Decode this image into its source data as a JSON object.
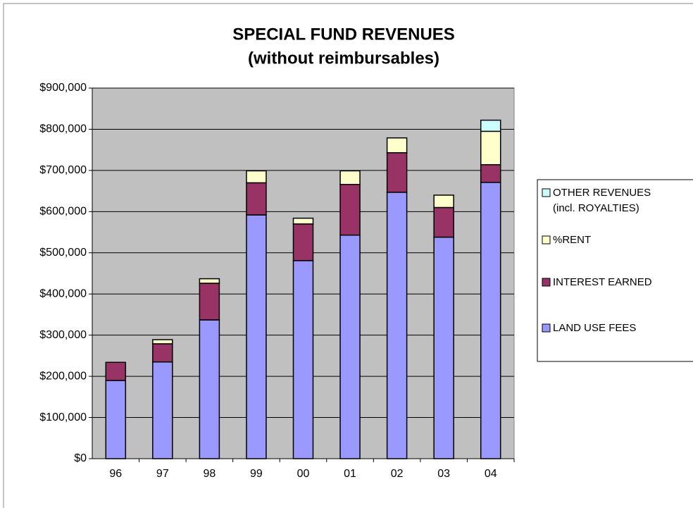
{
  "chart_data": {
    "type": "stacked_bar",
    "title": "SPECIAL FUND REVENUES",
    "subtitle": "(without reimbursables)",
    "categories": [
      "96",
      "97",
      "98",
      "99",
      "00",
      "01",
      "02",
      "03",
      "04"
    ],
    "series": [
      {
        "name": "LAND USE FEES",
        "color": "#9999ff",
        "values": [
          190000,
          235000,
          337000,
          592000,
          481000,
          543000,
          647000,
          538000,
          671000
        ]
      },
      {
        "name": "INTEREST EARNED",
        "color": "#993366",
        "values": [
          44000,
          44000,
          89000,
          78000,
          89000,
          123000,
          96000,
          72000,
          43000
        ]
      },
      {
        "name": "%RENT",
        "color": "#ffffcc",
        "values": [
          0,
          10000,
          11000,
          29000,
          14000,
          33000,
          36000,
          30000,
          81000
        ]
      },
      {
        "name": "OTHER REVENUES (incl. ROYALTIES)",
        "color": "#ccffff",
        "values": [
          0,
          0,
          0,
          0,
          0,
          0,
          0,
          0,
          27000
        ]
      }
    ],
    "ylim": [
      0,
      900000
    ],
    "yticks": [
      {
        "value": 0,
        "label": "$0"
      },
      {
        "value": 100000,
        "label": "$100,000"
      },
      {
        "value": 200000,
        "label": "$200,000"
      },
      {
        "value": 300000,
        "label": "$300,000"
      },
      {
        "value": 400000,
        "label": "$400,000"
      },
      {
        "value": 500000,
        "label": "$500,000"
      },
      {
        "value": 600000,
        "label": "$600,000"
      },
      {
        "value": 700000,
        "label": "$700,000"
      },
      {
        "value": 800000,
        "label": "$800,000"
      },
      {
        "value": 900000,
        "label": "$900,000"
      }
    ],
    "grid": true,
    "legend": "right"
  }
}
